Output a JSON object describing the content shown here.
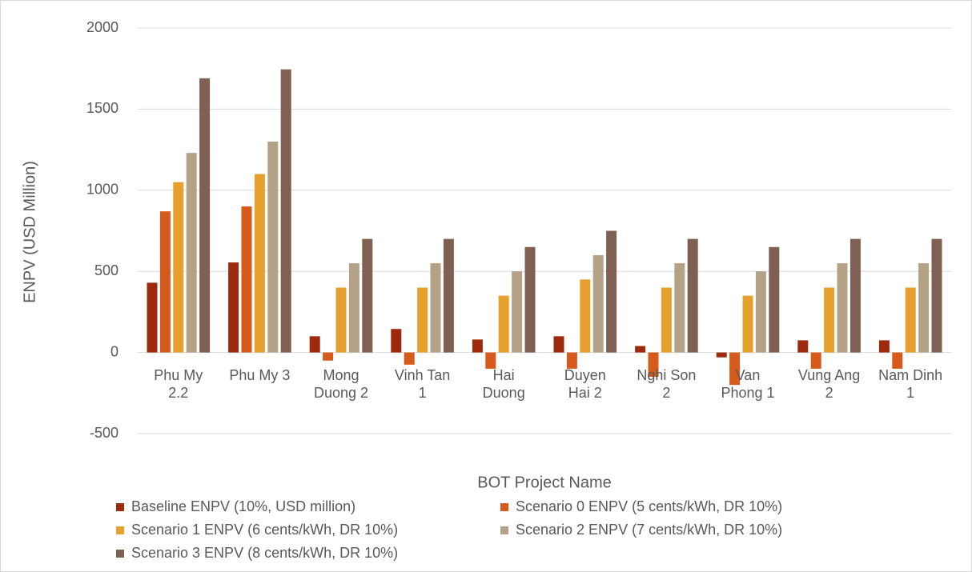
{
  "chart_data": {
    "type": "bar",
    "x_label": "BOT Project Name",
    "y_label": "ENPV (USD Million)",
    "categories": [
      "Phu My 2.2",
      "Phu My 3",
      "Mong Duong 2",
      "Vinh Tan 1",
      "Hai Duong",
      "Duyen Hai 2",
      "Nghi Son 2",
      "Van Phong 1",
      "Vung Ang 2",
      "Nam Dinh 1"
    ],
    "series": [
      {
        "name": "Baseline ENPV (10%, USD million)",
        "color": "#9e2a0e",
        "values": [
          430,
          555,
          100,
          145,
          80,
          100,
          40,
          -30,
          75,
          75
        ]
      },
      {
        "name": "Scenario 0 ENPV (5 cents/kWh, DR 10%)",
        "color": "#d55a1c",
        "values": [
          870,
          900,
          -50,
          -75,
          -100,
          -100,
          -150,
          -200,
          -100,
          -100
        ]
      },
      {
        "name": "Scenario 1 ENPV (6 cents/kWh, DR 10%)",
        "color": "#e6a02d",
        "values": [
          1050,
          1100,
          400,
          400,
          350,
          450,
          400,
          350,
          400,
          400
        ]
      },
      {
        "name": "Scenario 2 ENPV (7 cents/kWh, DR 10%)",
        "color": "#b3a285",
        "values": [
          1230,
          1300,
          550,
          550,
          500,
          600,
          550,
          500,
          550,
          550
        ]
      },
      {
        "name": "Scenario 3 ENPV (8 cents/kWh, DR 10%)",
        "color": "#7f6053",
        "values": [
          1690,
          1745,
          700,
          700,
          650,
          750,
          700,
          650,
          700,
          700
        ]
      }
    ],
    "ylim": [
      -500,
      2000
    ],
    "yticks": [
      -500,
      0,
      500,
      1000,
      1500,
      2000
    ],
    "grid": true
  }
}
